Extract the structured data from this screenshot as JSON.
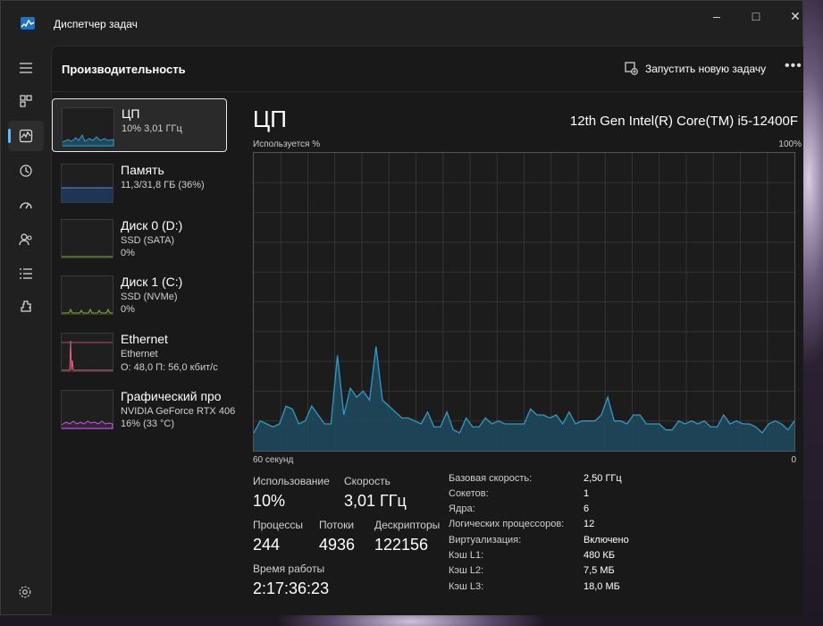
{
  "app": {
    "title": "Диспетчер задач"
  },
  "header": {
    "title": "Производительность",
    "run_task_label": "Запустить новую задачу"
  },
  "colors": {
    "cpu": "#2d9bc9",
    "memory": "#4f8fe0",
    "disk": "#7fb23a",
    "ethernet": "#e06080",
    "gpu": "#c05fd0",
    "accent": "#4cc2ff"
  },
  "nav": [
    {
      "icon": "hamburger-menu-icon"
    },
    {
      "icon": "processes-icon"
    },
    {
      "icon": "performance-icon",
      "active": true
    },
    {
      "icon": "app-history-icon"
    },
    {
      "icon": "startup-apps-icon"
    },
    {
      "icon": "users-icon"
    },
    {
      "icon": "details-icon"
    },
    {
      "icon": "services-icon"
    }
  ],
  "perf_items": [
    {
      "name": "ЦП",
      "line1": "10% 3,01 ГГц",
      "line2": "",
      "selected": true,
      "color": "#2d9bc9"
    },
    {
      "name": "Память",
      "line1": "11,3/31,8 ГБ (36%)",
      "line2": "",
      "color": "#4f8fe0"
    },
    {
      "name": "Диск 0 (D:)",
      "line1": "SSD (SATA)",
      "line2": "0%",
      "color": "#7fb23a"
    },
    {
      "name": "Диск 1 (C:)",
      "line1": "SSD (NVMe)",
      "line2": "0%",
      "color": "#7fb23a"
    },
    {
      "name": "Ethernet",
      "line1": "Ethernet",
      "line2": "О: 48,0 П: 56,0 кбит/с",
      "color": "#e06080"
    },
    {
      "name": "Графический про",
      "line1": "NVIDIA GeForce RTX 406",
      "line2": "16% (33 °C)",
      "color": "#c05fd0"
    }
  ],
  "detail": {
    "heading": "ЦП",
    "model": "12th Gen Intel(R) Core(TM) i5-12400F",
    "usage_label": "Используется %",
    "usage_max": "100%",
    "axis_left": "60 секунд",
    "axis_right": "0"
  },
  "chart_data": {
    "type": "area",
    "ylim": [
      0,
      100
    ],
    "x_label_left": "60 секунд",
    "x_label_right": "0",
    "values": [
      6,
      10,
      9,
      8,
      9,
      15,
      14,
      9,
      10,
      15,
      12,
      9,
      9,
      32,
      12,
      21,
      18,
      20,
      17,
      35,
      17,
      15,
      13,
      11,
      11,
      10,
      9,
      13,
      8,
      8,
      13,
      7,
      6,
      11,
      8,
      8,
      11,
      9,
      10,
      9,
      9,
      9,
      9,
      14,
      12,
      12,
      11,
      12,
      9,
      13,
      9,
      10,
      10,
      10,
      12,
      18,
      10,
      10,
      9,
      12,
      12,
      9,
      9,
      9,
      7,
      7,
      10,
      9,
      10,
      9,
      10,
      8,
      8,
      12,
      9,
      10,
      9,
      9,
      8,
      6,
      9,
      10,
      9,
      7,
      10
    ]
  },
  "stats": {
    "usage_label": "Использование",
    "usage_value": "10%",
    "speed_label": "Скорость",
    "speed_value": "3,01 ГГц",
    "processes_label": "Процессы",
    "processes_value": "244",
    "threads_label": "Потоки",
    "threads_value": "4936",
    "handles_label": "Дескрипторы",
    "handles_value": "122156",
    "uptime_label": "Время работы",
    "uptime_value": "2:17:36:23"
  },
  "info": [
    {
      "key": "Базовая скорость:",
      "value": "2,50 ГГц"
    },
    {
      "key": "Сокетов:",
      "value": "1"
    },
    {
      "key": "Ядра:",
      "value": "6"
    },
    {
      "key": "Логических процессоров:",
      "value": "12"
    },
    {
      "key": "Виртуализация:",
      "value": "Включено"
    },
    {
      "key": "Кэш L1:",
      "value": "480 КБ"
    },
    {
      "key": "Кэш L2:",
      "value": "7,5 МБ"
    },
    {
      "key": "Кэш L3:",
      "value": "18,0 МБ"
    }
  ]
}
